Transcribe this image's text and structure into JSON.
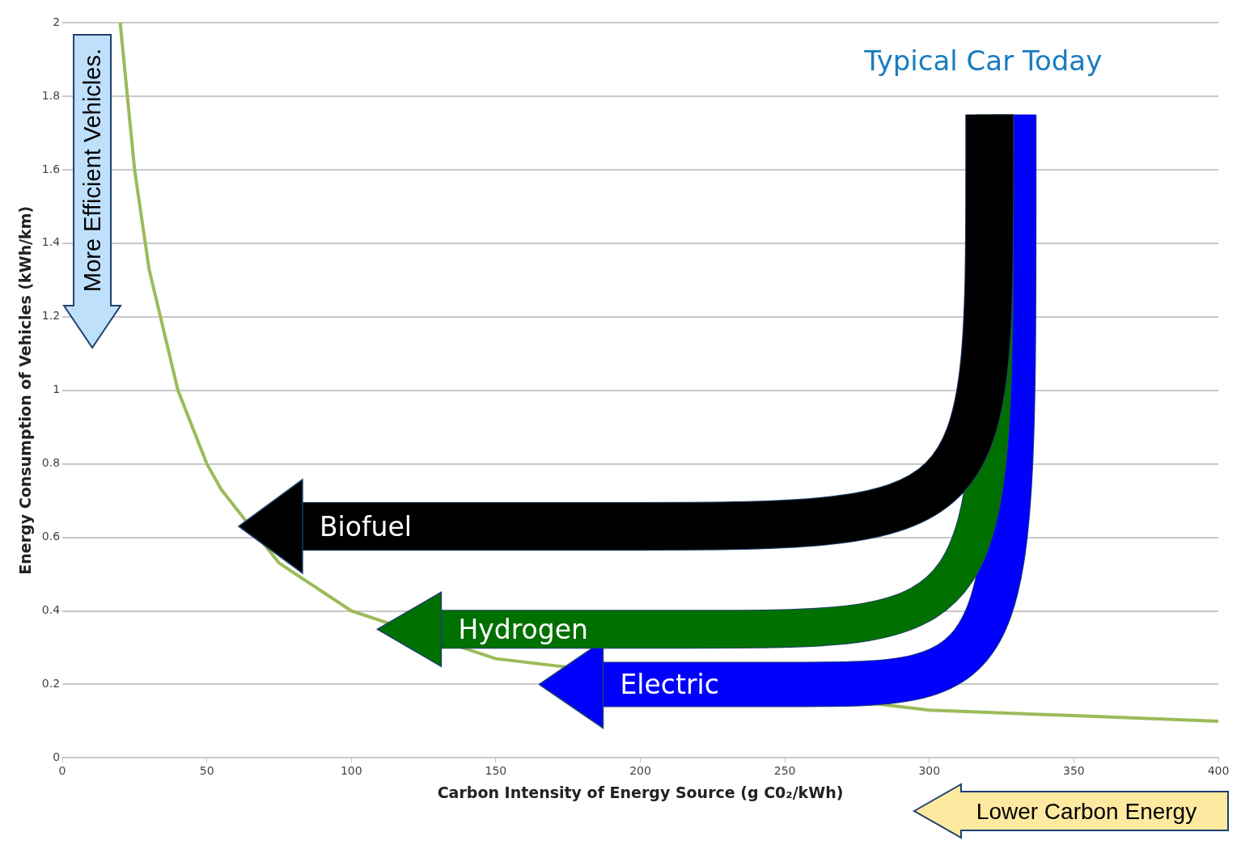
{
  "chart_data": {
    "type": "line",
    "xlabel": "Carbon Intensity of Energy Source (g C0₂/kWh)",
    "ylabel": "Energy Consumption of Vehicles (kWh/km)",
    "series": [
      {
        "color": "#9bbb59",
        "x": [
          20,
          25,
          30,
          40,
          50,
          55,
          75,
          100,
          150,
          300,
          350,
          400
        ],
        "values": [
          2.0,
          1.6,
          1.33,
          1.0,
          0.8,
          0.73,
          0.53,
          0.4,
          0.27,
          0.13,
          0.115,
          0.1
        ]
      }
    ],
    "xlim": [
      0,
      400
    ],
    "xticks": [
      0,
      50,
      100,
      150,
      200,
      250,
      300,
      350,
      400
    ],
    "ylim": [
      0,
      2
    ],
    "yticks": [
      0,
      0.2,
      0.4,
      0.6,
      0.8,
      1,
      1.2,
      1.4,
      1.6,
      1.8,
      2
    ],
    "grid": "y",
    "marker": "none",
    "line_style": "solid",
    "legend": false,
    "annotations": [
      "Typical Car Today",
      "Biofuel",
      "Hydrogen",
      "Electric",
      "More Efficient Vehicles.",
      "Lower Carbon Energy"
    ]
  }
}
